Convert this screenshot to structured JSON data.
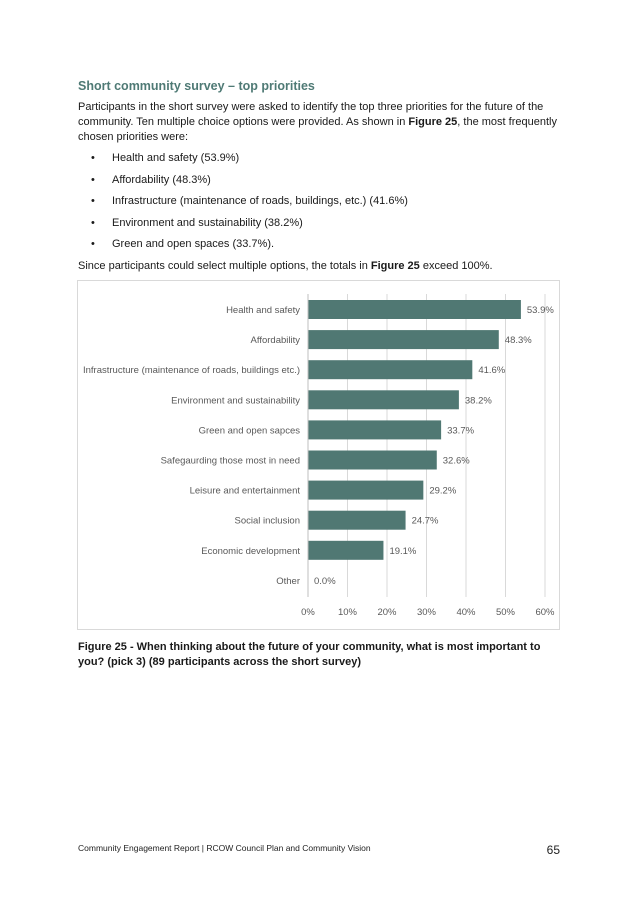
{
  "section": {
    "heading": "Short community survey – top priorities",
    "intro_1": "Participants in the short survey were asked to identify the top three priorities for the future of the community. Ten multiple choice options were provided. As shown in ",
    "intro_ref": "Figure 25",
    "intro_2": ", the most frequently chosen priorities were:",
    "bullet_symbol": "•",
    "bullets": [
      "Health and safety (53.9%)",
      "Affordability (48.3%)",
      "Infrastructure (maintenance of roads, buildings, etc.) (41.6%)",
      "Environment and sustainability (38.2%)",
      "Green and open spaces (33.7%)."
    ],
    "note_1": "Since participants could select multiple options, the totals in ",
    "note_ref": "Figure 25",
    "note_2": " exceed 100%."
  },
  "chart_data": {
    "type": "bar",
    "orientation": "horizontal",
    "categories": [
      "Health and safety",
      "Affordability",
      "Infrastructure (maintenance of roads, buildings etc.)",
      "Environment and sustainability",
      "Green and open sapces",
      "Safegaurding those most in need",
      "Leisure and entertainment",
      "Social inclusion",
      "Economic development",
      "Other"
    ],
    "values": [
      53.9,
      48.3,
      41.6,
      38.2,
      33.7,
      32.6,
      29.2,
      24.7,
      19.1,
      0.0
    ],
    "data_labels": [
      "53.9%",
      "48.3%",
      "41.6%",
      "38.2%",
      "33.7%",
      "32.6%",
      "29.2%",
      "24.7%",
      "19.1%",
      "0.0%"
    ],
    "x_ticks": [
      "0%",
      "10%",
      "20%",
      "30%",
      "40%",
      "50%",
      "60%"
    ],
    "xlim": [
      0,
      60
    ],
    "grid": true,
    "bar_color": "#507873",
    "title": "",
    "xlabel": "",
    "ylabel": ""
  },
  "caption": "Figure 25 - When thinking about the future of your community, what is most important to you? (pick 3) (89 participants across the short survey)",
  "footer": {
    "text": "Community Engagement Report | RCOW Council Plan and Community Vision",
    "page_number": "65"
  },
  "colors": {
    "heading": "#4f7a75",
    "bar": "#507873",
    "grid": "#d9d9d9",
    "chart_text": "#595959"
  }
}
